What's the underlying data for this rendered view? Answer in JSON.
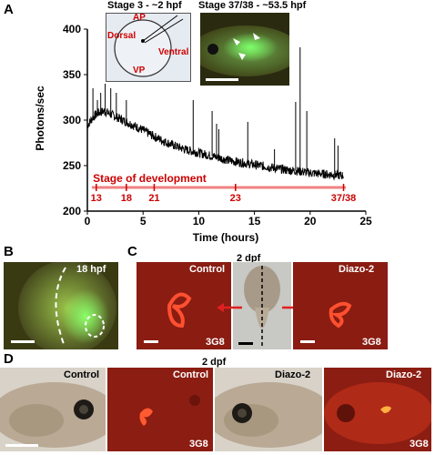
{
  "panels": {
    "A": {
      "letter": "A",
      "inset_left_title": "Stage 3 - ~2 hpf",
      "inset_left_labels": {
        "ap": "AP",
        "vp": "VP",
        "dorsal": "Dorsal",
        "ventral": "Ventral"
      },
      "inset_right_title": "Stage 37/38 - ~53.5 hpf"
    },
    "B": {
      "letter": "B",
      "label": "18 hpf"
    },
    "C": {
      "letter": "C",
      "title": "2 dpf",
      "left_label": "Control",
      "left_antibody": "3G8",
      "right_label": "Diazo-2",
      "right_antibody": "3G8"
    },
    "D": {
      "letter": "D",
      "title": "2 dpf",
      "p1_label": "Control",
      "p2_label": "Control",
      "p2_antibody": "3G8",
      "p3_label": "Diazo-2",
      "p4_label": "Diazo-2",
      "p4_antibody": "3G8"
    }
  },
  "colors": {
    "trace": "#000000",
    "stage_bar": "#f08080",
    "stage_text": "#cc0000",
    "green_fluor": "#3adf3a",
    "red_fluor": "#ff3a20"
  },
  "chart_data": {
    "type": "line",
    "xlabel": "Time (hours)",
    "ylabel": "Photons/sec",
    "xlim": [
      0,
      25
    ],
    "ylim": [
      200,
      400
    ],
    "xticks": [
      0,
      5,
      10,
      15,
      20,
      25
    ],
    "yticks": [
      200,
      250,
      300,
      350,
      400
    ],
    "series": [
      {
        "x": [
          0,
          0.5,
          1,
          1.5,
          2,
          3,
          4,
          5,
          6,
          7,
          8,
          9,
          10,
          11,
          12,
          13,
          14,
          15,
          16,
          17,
          18,
          19,
          20,
          21,
          22,
          23
        ],
        "values": [
          294,
          303,
          308,
          310,
          307,
          301,
          295,
          289,
          282,
          276,
          271,
          267,
          264,
          261,
          258,
          255,
          253,
          251,
          249,
          247,
          245,
          244,
          242,
          241,
          240,
          239
        ]
      }
    ],
    "spikes": [
      {
        "x": 0.5,
        "y": 335
      },
      {
        "x": 0.9,
        "y": 322
      },
      {
        "x": 1.2,
        "y": 330
      },
      {
        "x": 1.6,
        "y": 340
      },
      {
        "x": 2.1,
        "y": 335
      },
      {
        "x": 2.6,
        "y": 330
      },
      {
        "x": 3.5,
        "y": 322
      },
      {
        "x": 9.5,
        "y": 322
      },
      {
        "x": 11.2,
        "y": 310
      },
      {
        "x": 11.6,
        "y": 296
      },
      {
        "x": 11.8,
        "y": 290
      },
      {
        "x": 14.4,
        "y": 298
      },
      {
        "x": 16.8,
        "y": 268
      },
      {
        "x": 18.7,
        "y": 320
      },
      {
        "x": 19.1,
        "y": 380
      },
      {
        "x": 19.7,
        "y": 310
      },
      {
        "x": 22.2,
        "y": 280
      },
      {
        "x": 22.5,
        "y": 272
      }
    ],
    "stage_annotation": {
      "label": "Stage of development",
      "stages": [
        {
          "x": 0.8,
          "label": "13"
        },
        {
          "x": 3.5,
          "label": "18"
        },
        {
          "x": 6.0,
          "label": "21"
        },
        {
          "x": 13.3,
          "label": "23"
        },
        {
          "x": 23.0,
          "label": "37/38"
        }
      ]
    }
  }
}
